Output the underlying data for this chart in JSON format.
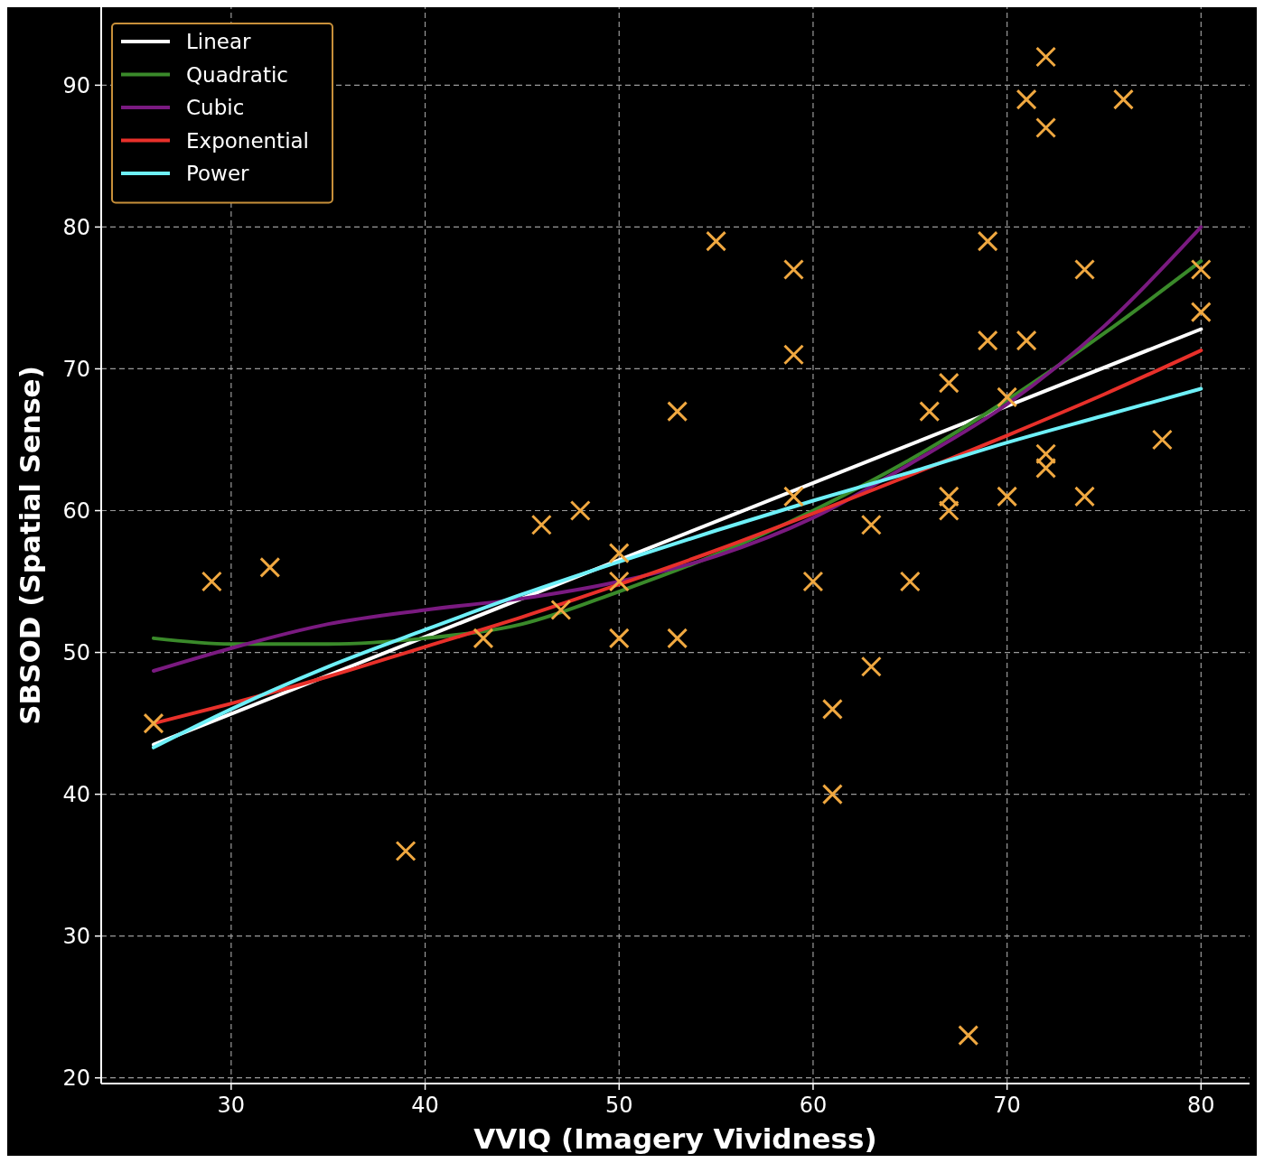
{
  "chart_data": {
    "type": "scatter",
    "xlabel": "VVIQ (Imagery Vividness)",
    "ylabel": "SBSOD (Spatial Sense)",
    "xlim": [
      23.3,
      82.5
    ],
    "ylim": [
      19.6,
      95.5
    ],
    "xticks": [
      30,
      40,
      50,
      60,
      70,
      80
    ],
    "yticks": [
      20,
      30,
      40,
      50,
      60,
      70,
      80,
      90
    ],
    "grid": true,
    "legend": "top left",
    "series": [
      {
        "marker": "cross",
        "color": "#f0a840",
        "x": [
          26,
          29,
          32,
          39,
          43,
          46,
          47,
          48,
          50,
          50,
          50,
          53,
          53,
          55,
          59,
          59,
          59,
          60,
          61,
          61,
          63,
          63,
          65,
          66,
          67,
          67,
          67,
          68,
          69,
          69,
          70,
          70,
          71,
          71,
          72,
          72,
          72,
          72,
          74,
          74,
          76,
          78,
          80,
          80
        ],
        "values": [
          45,
          55,
          56,
          36,
          51,
          59,
          53,
          60,
          57,
          55,
          51,
          67,
          51,
          79,
          77,
          71,
          61,
          55,
          46,
          40,
          59,
          49,
          55,
          67,
          69,
          61,
          60,
          23,
          79,
          72,
          68,
          61,
          89,
          72,
          92,
          87,
          64,
          63,
          77,
          61,
          89,
          65,
          77,
          74
        ]
      },
      {
        "type": "line",
        "name": "Linear",
        "color": "#ffffff",
        "x": [
          26,
          80
        ],
        "values": [
          43.5,
          72.8
        ]
      },
      {
        "type": "line",
        "name": "Quadratic",
        "color": "#3a8a2a",
        "x": [
          26,
          30,
          35,
          40,
          45,
          50,
          55,
          60,
          65,
          70,
          75,
          80
        ],
        "values": [
          51,
          50.6,
          50.6,
          51,
          52,
          54.3,
          56.9,
          60,
          63.6,
          67.8,
          72.5,
          77.6
        ]
      },
      {
        "type": "line",
        "name": "Cubic",
        "color": "#7a1a80",
        "x": [
          26,
          30,
          35,
          40,
          45,
          50,
          55,
          60,
          65,
          70,
          75,
          80
        ],
        "values": [
          48.7,
          50.3,
          52,
          53,
          53.8,
          55,
          56.8,
          59.5,
          63.3,
          67.5,
          73,
          80
        ]
      },
      {
        "type": "line",
        "name": "Exponential",
        "color": "#e8302a",
        "x": [
          26,
          30,
          35,
          40,
          45,
          50,
          55,
          60,
          65,
          70,
          75,
          80
        ],
        "values": [
          45,
          46.4,
          48.3,
          50.4,
          52.5,
          54.8,
          57.2,
          59.8,
          62.5,
          65.3,
          68.2,
          71.3
        ]
      },
      {
        "type": "line",
        "name": "Power",
        "color": "#6ef0f8",
        "x": [
          26,
          30,
          35,
          40,
          45,
          50,
          55,
          60,
          65,
          70,
          75,
          80
        ],
        "values": [
          43.3,
          46,
          49,
          51.6,
          54.1,
          56.4,
          58.6,
          60.7,
          62.7,
          64.8,
          66.7,
          68.6
        ]
      }
    ]
  }
}
